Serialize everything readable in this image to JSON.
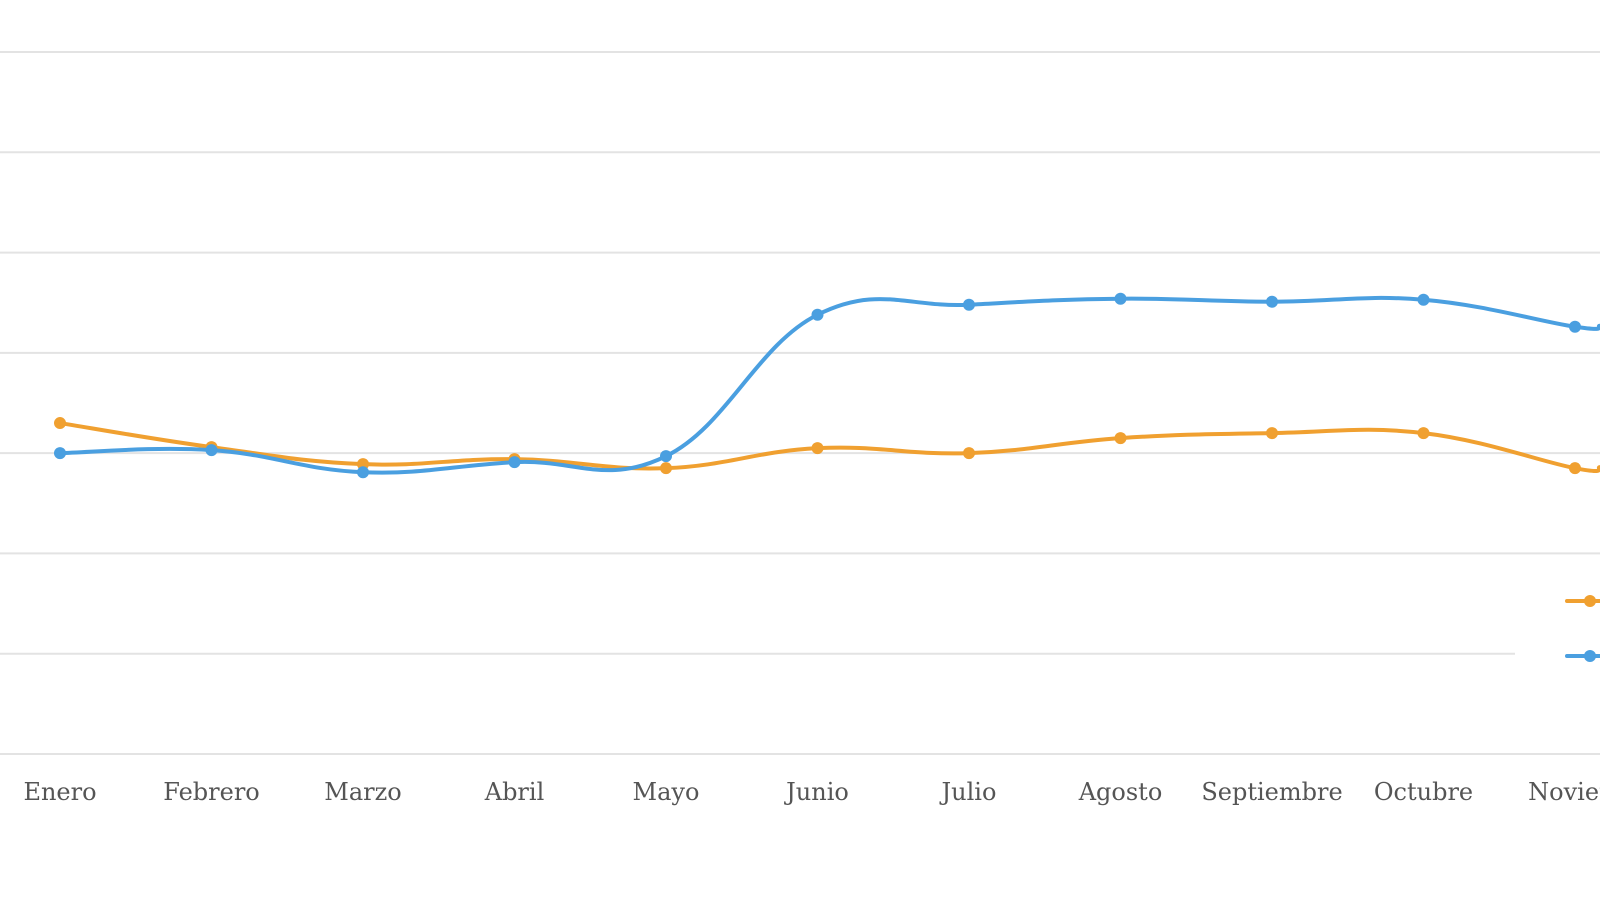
{
  "chart_data": {
    "type": "line",
    "categories": [
      "Enero",
      "Febrero",
      "Marzo",
      "Abril",
      "Mayo",
      "Junio",
      "Julio",
      "Agosto",
      "Septiembre",
      "Octubre",
      "Noviem"
    ],
    "series": [
      {
        "color": "#f0a030",
        "values": [
          3.3,
          3.06,
          2.89,
          2.94,
          2.85,
          3.05,
          3.0,
          3.15,
          3.2,
          3.2,
          2.85
        ]
      },
      {
        "color": "#4a9fe0",
        "values": [
          3.0,
          3.03,
          2.81,
          2.91,
          2.97,
          4.38,
          4.48,
          4.54,
          4.51,
          4.53,
          4.26
        ]
      }
    ],
    "ylim": [
      0,
      7
    ],
    "grid": true,
    "legend": "right"
  }
}
